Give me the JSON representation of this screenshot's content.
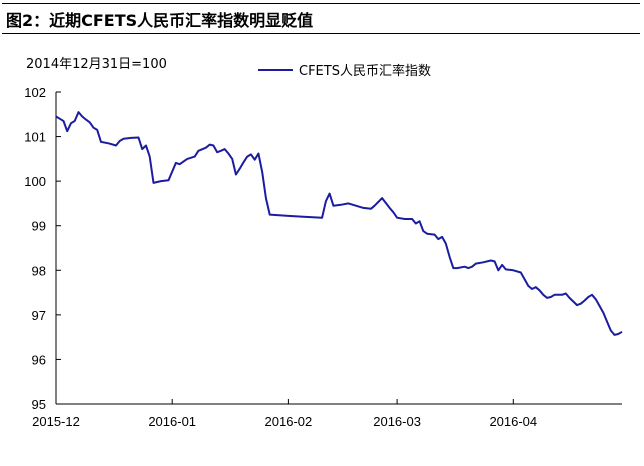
{
  "figure": {
    "title": "图2：近期CFETS人民币汇率指数明显贬值",
    "base_note": "2014年12月31日=100"
  },
  "colors": {
    "series": "#1c1ca0",
    "axis": "#000000"
  },
  "chart_data": {
    "type": "line",
    "title": "",
    "xlabel": "",
    "ylabel": "",
    "ylim": [
      95,
      102
    ],
    "yticks": [
      95,
      96,
      97,
      98,
      99,
      100,
      101,
      102
    ],
    "xlim": [
      "2015-12-01",
      "2016-04-30"
    ],
    "xticks": [
      "2015-12",
      "2016-01",
      "2016-02",
      "2016-03",
      "2016-04"
    ],
    "grid": false,
    "legend": {
      "position": "top-right"
    },
    "series": [
      {
        "name": "CFETS人民币汇率指数",
        "points": [
          [
            "2015-12-01",
            101.45
          ],
          [
            "2015-12-02",
            101.4
          ],
          [
            "2015-12-03",
            101.35
          ],
          [
            "2015-12-04",
            101.12
          ],
          [
            "2015-12-05",
            101.3
          ],
          [
            "2015-12-06",
            101.35
          ],
          [
            "2015-12-07",
            101.55
          ],
          [
            "2015-12-08",
            101.45
          ],
          [
            "2015-12-09",
            101.38
          ],
          [
            "2015-12-10",
            101.32
          ],
          [
            "2015-12-11",
            101.2
          ],
          [
            "2015-12-12",
            101.15
          ],
          [
            "2015-12-13",
            100.88
          ],
          [
            "2015-12-15",
            100.85
          ],
          [
            "2015-12-17",
            100.8
          ],
          [
            "2015-12-18",
            100.9
          ],
          [
            "2015-12-19",
            100.95
          ],
          [
            "2015-12-21",
            100.97
          ],
          [
            "2015-12-23",
            100.98
          ],
          [
            "2015-12-24",
            100.72
          ],
          [
            "2015-12-25",
            100.8
          ],
          [
            "2015-12-26",
            100.55
          ],
          [
            "2015-12-27",
            99.96
          ],
          [
            "2015-12-28",
            99.98
          ],
          [
            "2015-12-29",
            100.0
          ],
          [
            "2015-12-31",
            100.02
          ],
          [
            "2016-01-02",
            100.41
          ],
          [
            "2016-01-03",
            100.38
          ],
          [
            "2016-01-05",
            100.5
          ],
          [
            "2016-01-07",
            100.55
          ],
          [
            "2016-01-08",
            100.68
          ],
          [
            "2016-01-10",
            100.75
          ],
          [
            "2016-01-11",
            100.82
          ],
          [
            "2016-01-12",
            100.8
          ],
          [
            "2016-01-13",
            100.65
          ],
          [
            "2016-01-14",
            100.68
          ],
          [
            "2016-01-15",
            100.72
          ],
          [
            "2016-01-16",
            100.62
          ],
          [
            "2016-01-17",
            100.5
          ],
          [
            "2016-01-18",
            100.15
          ],
          [
            "2016-01-19",
            100.28
          ],
          [
            "2016-01-20",
            100.42
          ],
          [
            "2016-01-21",
            100.55
          ],
          [
            "2016-01-22",
            100.6
          ],
          [
            "2016-01-23",
            100.48
          ],
          [
            "2016-01-24",
            100.62
          ],
          [
            "2016-01-25",
            100.2
          ],
          [
            "2016-01-26",
            99.62
          ],
          [
            "2016-01-27",
            99.25
          ],
          [
            "2016-02-01",
            99.22
          ],
          [
            "2016-02-05",
            99.2
          ],
          [
            "2016-02-10",
            99.18
          ],
          [
            "2016-02-11",
            99.55
          ],
          [
            "2016-02-12",
            99.72
          ],
          [
            "2016-02-13",
            99.45
          ],
          [
            "2016-02-15",
            99.47
          ],
          [
            "2016-02-17",
            99.5
          ],
          [
            "2016-02-19",
            99.45
          ],
          [
            "2016-02-21",
            99.4
          ],
          [
            "2016-02-23",
            99.38
          ],
          [
            "2016-02-24",
            99.45
          ],
          [
            "2016-02-26",
            99.62
          ],
          [
            "2016-02-28",
            99.4
          ],
          [
            "2016-02-29",
            99.3
          ],
          [
            "2016-03-01",
            99.18
          ],
          [
            "2016-03-03",
            99.15
          ],
          [
            "2016-03-05",
            99.15
          ],
          [
            "2016-03-06",
            99.05
          ],
          [
            "2016-03-07",
            99.1
          ],
          [
            "2016-03-08",
            98.88
          ],
          [
            "2016-03-09",
            98.82
          ],
          [
            "2016-03-11",
            98.8
          ],
          [
            "2016-03-12",
            98.7
          ],
          [
            "2016-03-13",
            98.75
          ],
          [
            "2016-03-14",
            98.6
          ],
          [
            "2016-03-15",
            98.3
          ],
          [
            "2016-03-16",
            98.05
          ],
          [
            "2016-03-17",
            98.05
          ],
          [
            "2016-03-19",
            98.08
          ],
          [
            "2016-03-20",
            98.05
          ],
          [
            "2016-03-21",
            98.08
          ],
          [
            "2016-03-22",
            98.15
          ],
          [
            "2016-03-24",
            98.18
          ],
          [
            "2016-03-26",
            98.22
          ],
          [
            "2016-03-27",
            98.2
          ],
          [
            "2016-03-28",
            98.0
          ],
          [
            "2016-03-29",
            98.12
          ],
          [
            "2016-03-30",
            98.02
          ],
          [
            "2016-04-01",
            98.0
          ],
          [
            "2016-04-03",
            97.95
          ],
          [
            "2016-04-05",
            97.65
          ],
          [
            "2016-04-06",
            97.58
          ],
          [
            "2016-04-07",
            97.62
          ],
          [
            "2016-04-08",
            97.55
          ],
          [
            "2016-04-09",
            97.45
          ],
          [
            "2016-04-10",
            97.38
          ],
          [
            "2016-04-11",
            97.4
          ],
          [
            "2016-04-12",
            97.45
          ],
          [
            "2016-04-14",
            97.45
          ],
          [
            "2016-04-15",
            97.48
          ],
          [
            "2016-04-16",
            97.38
          ],
          [
            "2016-04-17",
            97.3
          ],
          [
            "2016-04-18",
            97.22
          ],
          [
            "2016-04-19",
            97.25
          ],
          [
            "2016-04-20",
            97.32
          ],
          [
            "2016-04-21",
            97.4
          ],
          [
            "2016-04-22",
            97.45
          ],
          [
            "2016-04-23",
            97.35
          ],
          [
            "2016-04-24",
            97.2
          ],
          [
            "2016-04-25",
            97.05
          ],
          [
            "2016-04-26",
            96.85
          ],
          [
            "2016-04-27",
            96.65
          ],
          [
            "2016-04-28",
            96.55
          ],
          [
            "2016-04-29",
            96.57
          ],
          [
            "2016-04-30",
            96.62
          ]
        ]
      }
    ]
  }
}
